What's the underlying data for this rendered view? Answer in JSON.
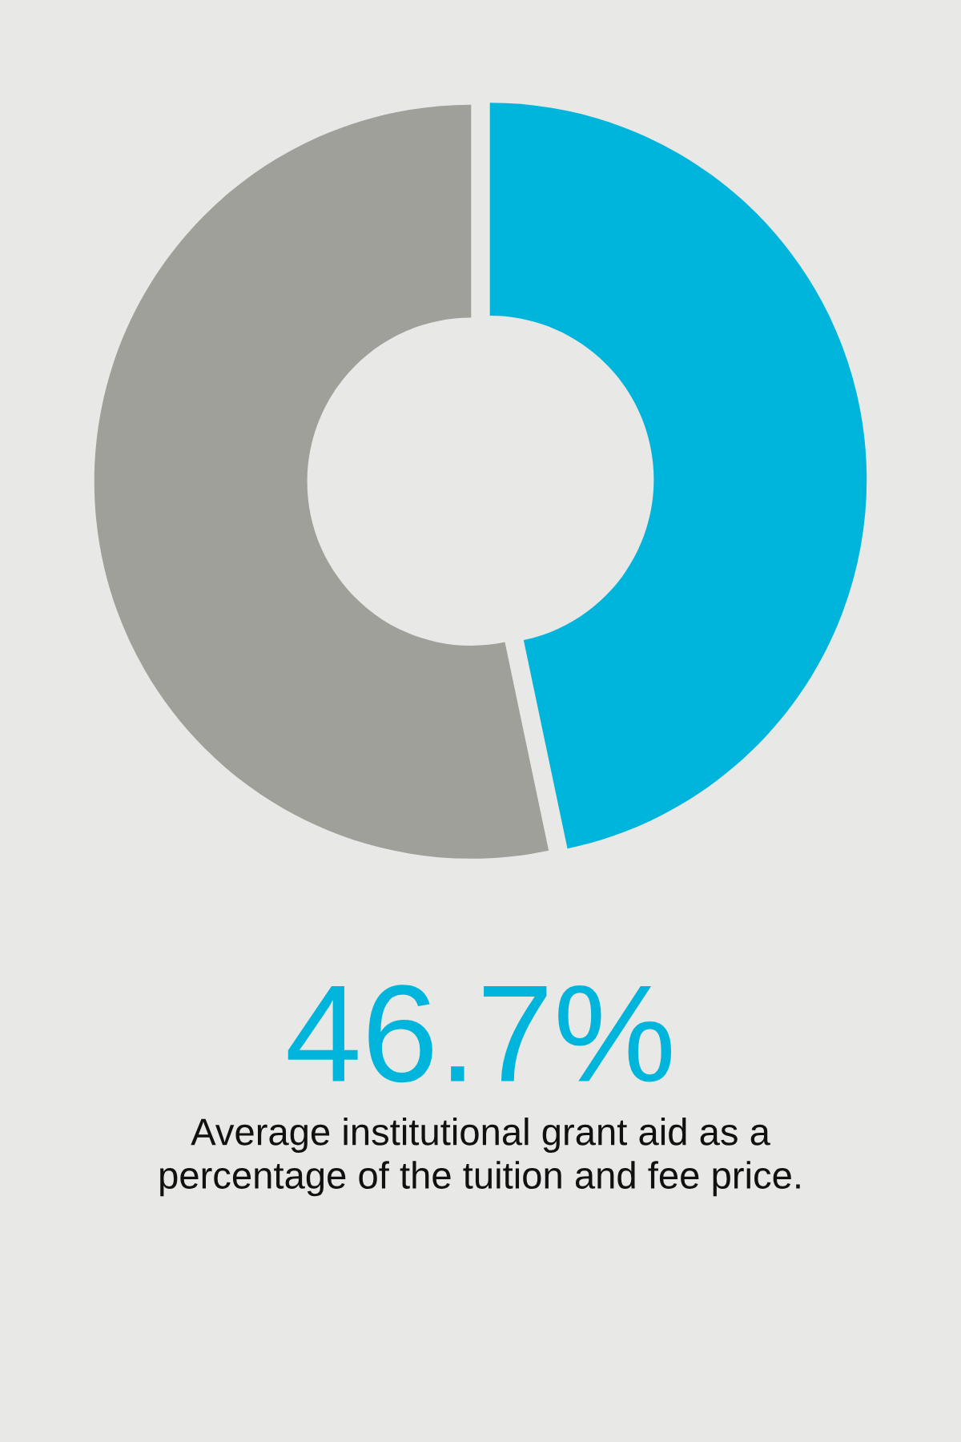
{
  "chart_data": {
    "type": "donut",
    "categories": [
      null,
      null
    ],
    "values": [
      46.7,
      53.3
    ],
    "colors": [
      "#00b5dc",
      "#a0a09a"
    ],
    "value_labels": [
      "46.7%",
      null
    ],
    "annotations": [
      "Average institutional grant aid as a percentage of the tuition and fee price."
    ],
    "legend": false
  }
}
